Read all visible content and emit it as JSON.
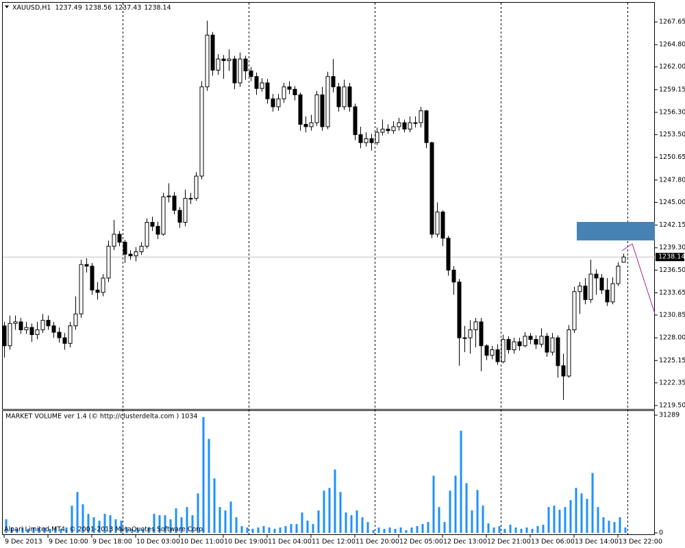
{
  "chart_data": [
    {
      "type": "candlestick",
      "title": "XAUUSD,H1",
      "bull_color": "#ffffff",
      "bear_color": "#000000",
      "edge_color": "#000000",
      "categories": [
        "9 Dec 2013",
        null,
        null,
        null,
        null,
        null,
        null,
        null,
        "9 Dec 10:00",
        null,
        null,
        null,
        null,
        null,
        null,
        null,
        "9 Dec 18:00",
        null,
        null,
        null,
        null,
        null,
        null,
        null,
        "10 Dec 03:00",
        null,
        null,
        null,
        null,
        null,
        null,
        null,
        "10 Dec 11:00",
        null,
        null,
        null,
        null,
        null,
        null,
        null,
        "10 Dec 19:00",
        null,
        null,
        null,
        null,
        null,
        null,
        null,
        "11 Dec 04:00",
        null,
        null,
        null,
        null,
        null,
        null,
        null,
        "11 Dec 12:00",
        null,
        null,
        null,
        null,
        null,
        null,
        null,
        "11 Dec 20:00",
        null,
        null,
        null,
        null,
        null,
        null,
        null,
        "12 Dec 05:00",
        null,
        null,
        null,
        null,
        null,
        null,
        null,
        "12 Dec 13:00",
        null,
        null,
        null,
        null,
        null,
        null,
        null,
        "12 Dec 21:00",
        null,
        null,
        null,
        null,
        null,
        null,
        null,
        "13 Dec 06:00",
        null,
        null,
        null,
        null,
        null,
        null,
        null,
        "13 Dec 14:00",
        null,
        null,
        null,
        null,
        null,
        null,
        null,
        "13 Dec 22:00",
        null
      ],
      "open": [
        1229.5,
        1227.0,
        1229.8,
        1230.0,
        1229.0,
        1229.3,
        1228.4,
        1229.0,
        1230.2,
        1229.5,
        1228.7,
        1228.0,
        1227.3,
        1229.5,
        1231.0,
        1237.2,
        1237.0,
        1234.0,
        1233.7,
        1235.5,
        1239.5,
        1241.0,
        1240.0,
        1238.5,
        1238.3,
        1238.8,
        1239.5,
        1242.5,
        1242.0,
        1241.0,
        1245.7,
        1245.8,
        1244.0,
        1242.5,
        1245.5,
        1245.5,
        1248.3,
        1259.5,
        1266.0,
        1261.6,
        1263.0,
        1262.8,
        1263.0,
        1260.0,
        1263.0,
        1261.5,
        1260.8,
        1259.3,
        1260.0,
        1258.0,
        1257.0,
        1258.0,
        1259.5,
        1259.2,
        1258.5,
        1254.8,
        1254.5,
        1255.0,
        1258.5,
        1254.5,
        1260.8,
        1259.5,
        1257.0,
        1259.5,
        1257.0,
        1253.5,
        1252.5,
        1253.0,
        1252.5,
        1253.8,
        1254.2,
        1254.0,
        1254.5,
        1255.0,
        1254.2,
        1255.0,
        1255.0,
        1256.5,
        1252.5,
        1241.0,
        1243.8,
        1240.5,
        1236.5,
        1235.0,
        1228.0,
        1228.0,
        1229.0,
        1230.0,
        1227.0,
        1225.8,
        1226.5,
        1225.0,
        1227.8,
        1226.5,
        1227.5,
        1227.0,
        1228.2,
        1227.8,
        1227.2,
        1228.2,
        1226.2,
        1228.0,
        1224.5,
        1223.2,
        1229.0,
        1233.8,
        1234.5,
        1232.8,
        1236.0,
        1235.5,
        1234.0,
        1232.5,
        1234.8,
        1237.49
      ],
      "high": [
        1230.0,
        1230.8,
        1230.8,
        1230.5,
        1230.0,
        1229.8,
        1230.0,
        1231.0,
        1230.8,
        1230.0,
        1229.3,
        1228.6,
        1230.0,
        1233.2,
        1237.8,
        1238.0,
        1237.4,
        1235.0,
        1236.0,
        1240.2,
        1242.8,
        1241.4,
        1240.3,
        1239.0,
        1239.4,
        1240.0,
        1243.0,
        1243.2,
        1242.6,
        1246.2,
        1247.4,
        1246.3,
        1244.4,
        1246.6,
        1246.2,
        1248.8,
        1260.2,
        1267.8,
        1266.4,
        1263.6,
        1263.5,
        1264.2,
        1263.4,
        1263.8,
        1263.4,
        1262.0,
        1261.3,
        1260.6,
        1260.5,
        1258.6,
        1258.6,
        1260.0,
        1260.2,
        1259.6,
        1258.8,
        1255.8,
        1256.0,
        1259.0,
        1259.5,
        1261.4,
        1263.0,
        1260.0,
        1260.4,
        1260.0,
        1257.4,
        1254.5,
        1253.8,
        1253.6,
        1254.4,
        1255.4,
        1254.8,
        1255.2,
        1255.6,
        1255.4,
        1255.8,
        1255.8,
        1257.0,
        1256.6,
        1252.6,
        1245.0,
        1244.0,
        1240.8,
        1237.0,
        1235.4,
        1229.5,
        1230.2,
        1230.5,
        1230.5,
        1227.2,
        1227.0,
        1227.2,
        1228.4,
        1228.2,
        1228.0,
        1228.0,
        1228.7,
        1228.6,
        1228.3,
        1229.2,
        1228.6,
        1228.6,
        1228.3,
        1226.0,
        1229.6,
        1234.4,
        1235.0,
        1235.5,
        1237.8,
        1236.6,
        1236.0,
        1235.5,
        1235.6,
        1237.5,
        1238.56
      ],
      "low": [
        1225.5,
        1226.5,
        1229.0,
        1228.5,
        1228.5,
        1227.5,
        1227.8,
        1228.6,
        1229.0,
        1228.0,
        1227.4,
        1226.5,
        1226.8,
        1229.0,
        1230.5,
        1236.2,
        1233.4,
        1232.8,
        1233.2,
        1235.0,
        1239.0,
        1239.5,
        1237.4,
        1237.8,
        1237.6,
        1238.4,
        1239.2,
        1241.4,
        1240.4,
        1240.8,
        1245.0,
        1243.5,
        1241.8,
        1242.0,
        1244.8,
        1245.2,
        1247.9,
        1259.0,
        1260.9,
        1261.0,
        1260.5,
        1261.5,
        1259.2,
        1259.5,
        1260.4,
        1260.2,
        1258.5,
        1258.9,
        1257.4,
        1256.4,
        1256.5,
        1257.5,
        1258.6,
        1257.8,
        1254.0,
        1253.8,
        1254.0,
        1254.6,
        1254.0,
        1254.2,
        1258.8,
        1256.4,
        1256.6,
        1256.4,
        1252.8,
        1251.8,
        1252.0,
        1251.5,
        1252.2,
        1253.4,
        1253.6,
        1253.6,
        1254.0,
        1253.8,
        1253.8,
        1254.4,
        1254.4,
        1251.8,
        1240.5,
        1240.6,
        1239.5,
        1235.8,
        1233.4,
        1224.5,
        1226.2,
        1226.0,
        1226.8,
        1223.8,
        1225.2,
        1225.3,
        1224.6,
        1224.8,
        1226.0,
        1226.0,
        1226.4,
        1226.8,
        1227.2,
        1226.6,
        1226.8,
        1225.6,
        1225.8,
        1223.0,
        1220.2,
        1223.0,
        1228.6,
        1231.0,
        1232.2,
        1232.4,
        1233.4,
        1233.5,
        1232.0,
        1232.2,
        1234.5,
        1237.43
      ],
      "close": [
        1227.0,
        1229.8,
        1230.0,
        1229.0,
        1229.3,
        1228.4,
        1229.0,
        1230.2,
        1229.5,
        1228.7,
        1228.0,
        1227.3,
        1229.5,
        1231.0,
        1237.2,
        1237.0,
        1234.0,
        1233.7,
        1235.5,
        1239.5,
        1241.0,
        1240.0,
        1238.5,
        1238.3,
        1238.8,
        1239.5,
        1242.5,
        1242.0,
        1241.0,
        1245.7,
        1245.8,
        1244.0,
        1242.5,
        1245.5,
        1245.5,
        1248.3,
        1259.5,
        1266.0,
        1261.6,
        1263.0,
        1262.8,
        1263.0,
        1260.0,
        1263.0,
        1261.5,
        1260.8,
        1259.3,
        1260.0,
        1258.0,
        1257.0,
        1258.0,
        1259.5,
        1259.2,
        1258.5,
        1254.8,
        1254.5,
        1255.0,
        1258.5,
        1254.5,
        1260.8,
        1259.5,
        1257.0,
        1259.5,
        1257.0,
        1253.5,
        1252.5,
        1253.0,
        1252.5,
        1253.8,
        1254.2,
        1254.0,
        1254.5,
        1255.0,
        1254.2,
        1255.0,
        1255.0,
        1256.5,
        1252.5,
        1241.0,
        1243.8,
        1240.5,
        1236.5,
        1235.0,
        1228.0,
        1228.0,
        1229.0,
        1230.0,
        1227.0,
        1225.8,
        1226.5,
        1225.0,
        1227.8,
        1226.5,
        1227.5,
        1227.0,
        1228.2,
        1227.8,
        1227.2,
        1228.2,
        1226.2,
        1228.0,
        1224.5,
        1223.2,
        1229.0,
        1233.8,
        1234.5,
        1232.8,
        1236.0,
        1235.5,
        1234.0,
        1232.5,
        1234.8,
        1237.0,
        1238.14
      ],
      "ylim": [
        1219.07,
        1270.06
      ],
      "yticks": [
        {
          "value": 1219.5,
          "label": "1219.50"
        },
        1222.35,
        1225.15,
        {
          "value": 1228,
          "label": "1228.00"
        },
        1230.85,
        1233.65,
        {
          "value": 1236.5,
          "label": "1236.50"
        },
        {
          "value": 1239.3,
          "label": "1239.30"
        },
        1242.15,
        {
          "value": 1245,
          "label": "1245.00"
        },
        {
          "value": 1247.8,
          "label": "1247.80"
        },
        1250.65,
        {
          "value": 1253.5,
          "label": "1253.50"
        },
        {
          "value": 1256.3,
          "label": "1256.30"
        },
        1259.15,
        {
          "value": 1262,
          "label": "1262.00"
        },
        {
          "value": 1264.8,
          "label": "1264.80"
        },
        1267.65
      ]
    },
    {
      "type": "bar",
      "title": "MARKET VOLUME ver 1.4 (© http://clusterdelta.com ) 1034",
      "watermark": "Alpari Limited MT4, © 2001-2013 MetaQuotes Software Corp.",
      "color": "#1e90ff",
      "values": [
        3620,
        1448,
        1086,
        1448,
        1086,
        1448,
        1267,
        1448,
        1086,
        1448,
        1086,
        1448,
        7240,
        10860,
        7602,
        5068,
        4163,
        3258,
        5068,
        4706,
        3620,
        3258,
        1448,
        1086,
        1448,
        1086,
        1448,
        5068,
        4706,
        4706,
        3620,
        6516,
        4163,
        6878,
        4706,
        10498,
        30770,
        24978,
        14480,
        6878,
        5973,
        8326,
        4163,
        1810,
        1448,
        1086,
        1448,
        1810,
        1448,
        1086,
        1448,
        1810,
        2353,
        2353,
        5430,
        3258,
        2353,
        5973,
        11222,
        11946,
        16833,
        10860,
        5430,
        4706,
        5973,
        4163,
        2896,
        724,
        1448,
        1086,
        1448,
        1086,
        1448,
        724,
        1448,
        1810,
        2353,
        2896,
        15204,
        6878,
        2896,
        11222,
        15204,
        27150,
        13213,
        5973,
        11403,
        7240,
        2534,
        1448,
        1810,
        1086,
        2172,
        1448,
        1086,
        1448,
        1086,
        1810,
        2172,
        6878,
        7240,
        6154,
        6878,
        8688,
        11946,
        10498,
        9050,
        15928,
        6878,
        4163,
        3258,
        2896,
        4163,
        1448
      ],
      "ylim": [
        0,
        31289
      ],
      "yticks": [
        0,
        31289
      ]
    }
  ]
}
